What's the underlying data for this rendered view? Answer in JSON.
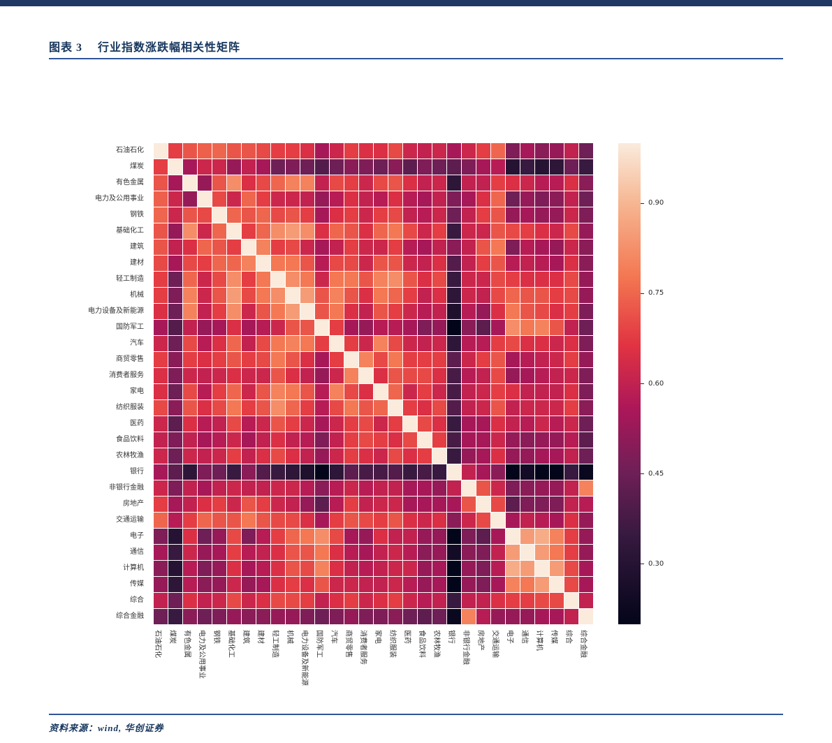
{
  "page": {
    "figure_label": "图表 3",
    "title": "行业指数涨跌幅相关性矩阵",
    "source_note": "资料来源：wind, 华创证券",
    "accent_color": "#17365D",
    "header_bar_color": "#1F3864",
    "rule_color": "#2F5597"
  },
  "chart_data": {
    "type": "heatmap",
    "title": "行业指数涨跌幅相关性矩阵",
    "legend_position": "right",
    "grid": "white-gridlines",
    "vmin": 0.2,
    "vmax": 1.0,
    "colormap": "rocket",
    "colormap_stops": [
      [
        0.0,
        "#03051A"
      ],
      [
        0.18,
        "#35193E"
      ],
      [
        0.32,
        "#701F57"
      ],
      [
        0.45,
        "#AD1759"
      ],
      [
        0.58,
        "#E13342"
      ],
      [
        0.72,
        "#F37651"
      ],
      [
        0.87,
        "#F6B48F"
      ],
      [
        1.0,
        "#FAEBDD"
      ]
    ],
    "colorbar": {
      "ticks": [
        0.9,
        0.75,
        0.6,
        0.45,
        0.3
      ],
      "tick_labels": [
        "0.90",
        "0.75",
        "0.60",
        "0.45",
        "0.30"
      ]
    },
    "categories": [
      "石油石化",
      "煤炭",
      "有色金属",
      "电力及公用事业",
      "钢铁",
      "基础化工",
      "建筑",
      "建材",
      "轻工制造",
      "机械",
      "电力设备及新能源",
      "国防军工",
      "汽车",
      "商贸零售",
      "消费者服务",
      "家电",
      "纺织服装",
      "医药",
      "食品饮料",
      "农林牧渔",
      "银行",
      "非银行金融",
      "房地产",
      "交通运输",
      "电子",
      "通信",
      "计算机",
      "传媒",
      "综合",
      "综合金融"
    ],
    "matrix": [
      [
        1.0,
        0.68,
        0.72,
        0.74,
        0.75,
        0.72,
        0.72,
        0.7,
        0.68,
        0.68,
        0.65,
        0.55,
        0.62,
        0.68,
        0.65,
        0.65,
        0.7,
        0.62,
        0.6,
        0.62,
        0.55,
        0.62,
        0.68,
        0.75,
        0.48,
        0.55,
        0.5,
        0.52,
        0.6,
        0.45
      ],
      [
        0.68,
        1.0,
        0.55,
        0.62,
        0.62,
        0.52,
        0.6,
        0.55,
        0.45,
        0.48,
        0.45,
        0.4,
        0.45,
        0.5,
        0.48,
        0.45,
        0.5,
        0.42,
        0.48,
        0.45,
        0.42,
        0.48,
        0.55,
        0.58,
        0.3,
        0.35,
        0.3,
        0.32,
        0.45,
        0.35
      ],
      [
        0.72,
        0.55,
        1.0,
        0.52,
        0.72,
        0.82,
        0.65,
        0.7,
        0.75,
        0.8,
        0.8,
        0.6,
        0.7,
        0.68,
        0.62,
        0.7,
        0.72,
        0.65,
        0.6,
        0.62,
        0.32,
        0.6,
        0.6,
        0.68,
        0.65,
        0.62,
        0.58,
        0.58,
        0.65,
        0.5
      ],
      [
        0.74,
        0.62,
        0.52,
        1.0,
        0.7,
        0.62,
        0.75,
        0.68,
        0.62,
        0.62,
        0.6,
        0.52,
        0.58,
        0.65,
        0.6,
        0.58,
        0.65,
        0.58,
        0.55,
        0.6,
        0.48,
        0.55,
        0.65,
        0.75,
        0.45,
        0.52,
        0.48,
        0.5,
        0.6,
        0.45
      ],
      [
        0.75,
        0.62,
        0.72,
        0.7,
        1.0,
        0.75,
        0.72,
        0.75,
        0.7,
        0.72,
        0.68,
        0.55,
        0.65,
        0.68,
        0.62,
        0.68,
        0.7,
        0.6,
        0.58,
        0.62,
        0.45,
        0.6,
        0.68,
        0.72,
        0.52,
        0.55,
        0.52,
        0.52,
        0.62,
        0.48
      ],
      [
        0.72,
        0.52,
        0.82,
        0.62,
        0.75,
        1.0,
        0.68,
        0.75,
        0.82,
        0.85,
        0.82,
        0.65,
        0.75,
        0.72,
        0.65,
        0.75,
        0.78,
        0.7,
        0.62,
        0.68,
        0.35,
        0.62,
        0.62,
        0.72,
        0.7,
        0.68,
        0.65,
        0.62,
        0.7,
        0.52
      ],
      [
        0.72,
        0.6,
        0.65,
        0.75,
        0.72,
        0.68,
        1.0,
        0.8,
        0.68,
        0.7,
        0.62,
        0.55,
        0.6,
        0.68,
        0.62,
        0.62,
        0.68,
        0.58,
        0.55,
        0.6,
        0.5,
        0.6,
        0.72,
        0.78,
        0.48,
        0.58,
        0.55,
        0.52,
        0.62,
        0.5
      ],
      [
        0.7,
        0.55,
        0.7,
        0.68,
        0.75,
        0.75,
        0.8,
        1.0,
        0.78,
        0.78,
        0.72,
        0.58,
        0.7,
        0.7,
        0.62,
        0.72,
        0.72,
        0.62,
        0.6,
        0.65,
        0.4,
        0.6,
        0.68,
        0.72,
        0.58,
        0.6,
        0.58,
        0.55,
        0.65,
        0.5
      ],
      [
        0.68,
        0.45,
        0.75,
        0.62,
        0.7,
        0.82,
        0.68,
        0.78,
        1.0,
        0.82,
        0.78,
        0.62,
        0.78,
        0.78,
        0.72,
        0.8,
        0.82,
        0.72,
        0.65,
        0.7,
        0.35,
        0.62,
        0.62,
        0.7,
        0.68,
        0.65,
        0.65,
        0.65,
        0.7,
        0.52
      ],
      [
        0.68,
        0.48,
        0.8,
        0.62,
        0.72,
        0.85,
        0.7,
        0.78,
        0.82,
        1.0,
        0.85,
        0.72,
        0.8,
        0.72,
        0.65,
        0.78,
        0.75,
        0.68,
        0.6,
        0.65,
        0.32,
        0.62,
        0.6,
        0.7,
        0.75,
        0.72,
        0.72,
        0.68,
        0.7,
        0.52
      ],
      [
        0.65,
        0.45,
        0.8,
        0.6,
        0.68,
        0.82,
        0.62,
        0.72,
        0.78,
        0.85,
        1.0,
        0.72,
        0.78,
        0.65,
        0.6,
        0.72,
        0.68,
        0.62,
        0.58,
        0.6,
        0.28,
        0.58,
        0.52,
        0.65,
        0.78,
        0.72,
        0.7,
        0.65,
        0.68,
        0.48
      ],
      [
        0.55,
        0.4,
        0.6,
        0.52,
        0.55,
        0.65,
        0.55,
        0.58,
        0.62,
        0.72,
        0.72,
        1.0,
        0.68,
        0.55,
        0.52,
        0.58,
        0.58,
        0.55,
        0.48,
        0.52,
        0.18,
        0.5,
        0.42,
        0.55,
        0.82,
        0.78,
        0.8,
        0.72,
        0.6,
        0.45
      ],
      [
        0.62,
        0.45,
        0.7,
        0.58,
        0.65,
        0.75,
        0.6,
        0.7,
        0.78,
        0.8,
        0.78,
        0.68,
        1.0,
        0.68,
        0.62,
        0.8,
        0.7,
        0.62,
        0.6,
        0.62,
        0.32,
        0.58,
        0.58,
        0.68,
        0.7,
        0.65,
        0.65,
        0.62,
        0.65,
        0.48
      ],
      [
        0.68,
        0.5,
        0.68,
        0.65,
        0.68,
        0.72,
        0.68,
        0.7,
        0.78,
        0.72,
        0.65,
        0.55,
        0.68,
        1.0,
        0.8,
        0.7,
        0.78,
        0.68,
        0.68,
        0.68,
        0.42,
        0.62,
        0.68,
        0.72,
        0.55,
        0.58,
        0.6,
        0.62,
        0.68,
        0.52
      ],
      [
        0.65,
        0.48,
        0.62,
        0.6,
        0.62,
        0.65,
        0.62,
        0.62,
        0.72,
        0.65,
        0.6,
        0.52,
        0.62,
        0.8,
        1.0,
        0.65,
        0.72,
        0.7,
        0.7,
        0.65,
        0.38,
        0.58,
        0.6,
        0.7,
        0.52,
        0.55,
        0.58,
        0.6,
        0.62,
        0.48
      ],
      [
        0.65,
        0.45,
        0.7,
        0.58,
        0.68,
        0.75,
        0.62,
        0.72,
        0.8,
        0.78,
        0.72,
        0.58,
        0.8,
        0.7,
        0.65,
        1.0,
        0.75,
        0.62,
        0.68,
        0.62,
        0.38,
        0.6,
        0.62,
        0.68,
        0.65,
        0.6,
        0.6,
        0.6,
        0.65,
        0.48
      ],
      [
        0.7,
        0.5,
        0.72,
        0.65,
        0.7,
        0.78,
        0.68,
        0.72,
        0.82,
        0.75,
        0.68,
        0.58,
        0.7,
        0.78,
        0.72,
        0.75,
        1.0,
        0.68,
        0.65,
        0.7,
        0.4,
        0.6,
        0.62,
        0.72,
        0.6,
        0.62,
        0.62,
        0.62,
        0.68,
        0.5
      ],
      [
        0.62,
        0.42,
        0.65,
        0.58,
        0.6,
        0.7,
        0.58,
        0.62,
        0.72,
        0.68,
        0.62,
        0.55,
        0.62,
        0.68,
        0.7,
        0.62,
        0.68,
        1.0,
        0.7,
        0.65,
        0.35,
        0.55,
        0.55,
        0.65,
        0.6,
        0.58,
        0.62,
        0.58,
        0.62,
        0.45
      ],
      [
        0.6,
        0.48,
        0.6,
        0.55,
        0.58,
        0.62,
        0.55,
        0.6,
        0.65,
        0.6,
        0.58,
        0.48,
        0.6,
        0.68,
        0.7,
        0.68,
        0.65,
        0.7,
        1.0,
        0.68,
        0.38,
        0.55,
        0.55,
        0.62,
        0.52,
        0.5,
        0.52,
        0.52,
        0.58,
        0.42
      ],
      [
        0.62,
        0.45,
        0.62,
        0.6,
        0.62,
        0.68,
        0.6,
        0.65,
        0.7,
        0.65,
        0.6,
        0.52,
        0.62,
        0.68,
        0.65,
        0.62,
        0.7,
        0.65,
        0.68,
        1.0,
        0.35,
        0.52,
        0.55,
        0.65,
        0.52,
        0.52,
        0.55,
        0.55,
        0.6,
        0.45
      ],
      [
        0.55,
        0.42,
        0.32,
        0.48,
        0.45,
        0.35,
        0.5,
        0.4,
        0.35,
        0.32,
        0.28,
        0.18,
        0.32,
        0.42,
        0.38,
        0.38,
        0.4,
        0.35,
        0.38,
        0.35,
        1.0,
        0.6,
        0.55,
        0.5,
        0.18,
        0.25,
        0.18,
        0.2,
        0.35,
        0.22
      ],
      [
        0.62,
        0.48,
        0.6,
        0.55,
        0.6,
        0.62,
        0.6,
        0.6,
        0.62,
        0.62,
        0.58,
        0.5,
        0.58,
        0.62,
        0.58,
        0.6,
        0.6,
        0.55,
        0.55,
        0.52,
        0.6,
        1.0,
        0.72,
        0.62,
        0.48,
        0.5,
        0.52,
        0.52,
        0.6,
        0.8
      ],
      [
        0.68,
        0.55,
        0.6,
        0.65,
        0.68,
        0.62,
        0.72,
        0.68,
        0.62,
        0.6,
        0.52,
        0.42,
        0.58,
        0.68,
        0.6,
        0.62,
        0.62,
        0.55,
        0.55,
        0.55,
        0.55,
        0.72,
        1.0,
        0.7,
        0.42,
        0.48,
        0.48,
        0.48,
        0.6,
        0.58
      ],
      [
        0.75,
        0.58,
        0.68,
        0.75,
        0.72,
        0.72,
        0.78,
        0.72,
        0.7,
        0.7,
        0.65,
        0.55,
        0.68,
        0.72,
        0.7,
        0.68,
        0.72,
        0.65,
        0.62,
        0.65,
        0.5,
        0.62,
        0.7,
        1.0,
        0.55,
        0.6,
        0.58,
        0.55,
        0.65,
        0.52
      ],
      [
        0.48,
        0.3,
        0.65,
        0.45,
        0.52,
        0.7,
        0.48,
        0.58,
        0.68,
        0.75,
        0.78,
        0.82,
        0.7,
        0.55,
        0.52,
        0.65,
        0.6,
        0.6,
        0.52,
        0.52,
        0.18,
        0.48,
        0.42,
        0.55,
        1.0,
        0.85,
        0.88,
        0.8,
        0.68,
        0.52
      ],
      [
        0.55,
        0.35,
        0.62,
        0.52,
        0.55,
        0.68,
        0.58,
        0.6,
        0.65,
        0.72,
        0.72,
        0.78,
        0.65,
        0.58,
        0.55,
        0.6,
        0.62,
        0.58,
        0.5,
        0.52,
        0.25,
        0.5,
        0.48,
        0.6,
        0.85,
        1.0,
        0.85,
        0.78,
        0.68,
        0.52
      ],
      [
        0.5,
        0.3,
        0.58,
        0.48,
        0.52,
        0.65,
        0.55,
        0.58,
        0.65,
        0.72,
        0.7,
        0.8,
        0.65,
        0.6,
        0.58,
        0.6,
        0.62,
        0.62,
        0.52,
        0.55,
        0.18,
        0.52,
        0.48,
        0.58,
        0.88,
        0.85,
        1.0,
        0.85,
        0.7,
        0.55
      ],
      [
        0.52,
        0.32,
        0.58,
        0.5,
        0.52,
        0.62,
        0.52,
        0.55,
        0.65,
        0.68,
        0.65,
        0.72,
        0.62,
        0.62,
        0.6,
        0.6,
        0.62,
        0.58,
        0.52,
        0.55,
        0.2,
        0.52,
        0.48,
        0.55,
        0.8,
        0.78,
        0.85,
        1.0,
        0.7,
        0.55
      ],
      [
        0.6,
        0.45,
        0.65,
        0.6,
        0.62,
        0.7,
        0.62,
        0.65,
        0.7,
        0.7,
        0.68,
        0.6,
        0.65,
        0.68,
        0.62,
        0.65,
        0.68,
        0.62,
        0.58,
        0.6,
        0.35,
        0.6,
        0.6,
        0.65,
        0.68,
        0.68,
        0.7,
        0.7,
        1.0,
        0.6
      ],
      [
        0.45,
        0.35,
        0.5,
        0.45,
        0.48,
        0.52,
        0.5,
        0.5,
        0.52,
        0.52,
        0.48,
        0.45,
        0.48,
        0.52,
        0.48,
        0.48,
        0.5,
        0.45,
        0.42,
        0.45,
        0.22,
        0.8,
        0.58,
        0.52,
        0.52,
        0.52,
        0.55,
        0.55,
        0.6,
        1.0
      ]
    ]
  }
}
